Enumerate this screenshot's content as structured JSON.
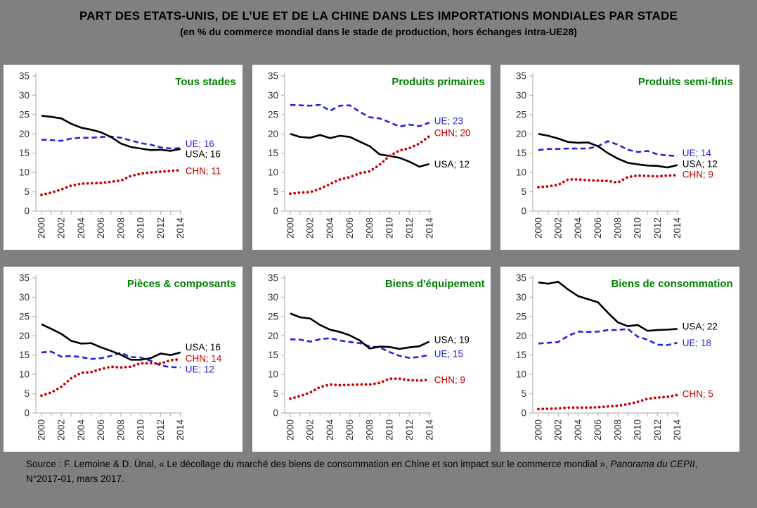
{
  "title": "PART DES ETATS-UNIS, DE L’UE ET DE LA CHINE DANS LES IMPORTATIONS MONDIALES PAR STADE",
  "subtitle": "(en % du commerce mondial dans le stade de production, hors échanges intra-UE28)",
  "source": {
    "prefix": "Source : F. Lemoine & D. Ünal, « Le décollage du marché des biens de consommation en Chine et son impact sur le commerce mondial », ",
    "italic": "Panorama du CEPII",
    "suffix": ", N°2017-01, mars 2017."
  },
  "colors": {
    "background": "#808080",
    "panel_bg": "#FFFFFF",
    "panel_title": "#008000",
    "axis": "#BBBBBB",
    "tick_label": "#333333",
    "usa": "#000000",
    "ue": "#2424DC",
    "chn": "#C90000"
  },
  "chart_common": {
    "type": "line",
    "x": [
      2000,
      2001,
      2002,
      2003,
      2004,
      2005,
      2006,
      2007,
      2008,
      2009,
      2010,
      2011,
      2012,
      2013,
      2014
    ],
    "x_label_step": 2,
    "ylim": [
      0,
      35
    ],
    "y_ticks": [
      0,
      5,
      10,
      15,
      20,
      25,
      30,
      35
    ],
    "grid": false,
    "legend_position": "right-end-labels"
  },
  "chart_data": [
    {
      "title": "Tous stades",
      "series": [
        {
          "name": "UE",
          "color_key": "ue",
          "style": "dashed",
          "end_label": "UE; 16",
          "label_at": 17.4,
          "values": [
            18.5,
            18.4,
            18.2,
            18.8,
            19.0,
            19.0,
            19.2,
            19.3,
            19.0,
            18.3,
            17.6,
            17.2,
            16.5,
            16.2,
            16.3
          ]
        },
        {
          "name": "USA",
          "color_key": "usa",
          "style": "solid",
          "end_label": "USA; 16",
          "label_at": 14.8,
          "values": [
            24.7,
            24.4,
            24.0,
            22.6,
            21.6,
            21.1,
            20.4,
            19.2,
            17.5,
            16.6,
            16.2,
            15.8,
            15.9,
            15.6,
            16.1
          ]
        },
        {
          "name": "CHN",
          "color_key": "chn",
          "style": "dotted",
          "end_label": "CHN; 11",
          "label_at": 10.4,
          "values": [
            4.2,
            4.8,
            5.6,
            6.6,
            7.1,
            7.2,
            7.3,
            7.6,
            7.9,
            9.1,
            9.7,
            10.0,
            10.2,
            10.4,
            10.6
          ]
        }
      ]
    },
    {
      "title": "Produits primaires",
      "series": [
        {
          "name": "UE",
          "color_key": "ue",
          "style": "dashed",
          "end_label": "UE; 23",
          "label_at": 23.3,
          "values": [
            27.5,
            27.4,
            27.3,
            27.5,
            26.0,
            27.3,
            27.4,
            25.7,
            24.3,
            24.0,
            23.0,
            21.9,
            22.4,
            22.0,
            22.9
          ]
        },
        {
          "name": "USA",
          "color_key": "usa",
          "style": "solid",
          "end_label": "USA; 12",
          "label_at": 12.1,
          "values": [
            20.0,
            19.2,
            19.0,
            19.7,
            18.9,
            19.5,
            19.2,
            18.0,
            16.8,
            14.7,
            14.3,
            13.8,
            12.8,
            11.5,
            12.2
          ]
        },
        {
          "name": "CHN",
          "color_key": "chn",
          "style": "dotted",
          "end_label": "CHN; 20",
          "label_at": 20.2,
          "values": [
            4.5,
            4.8,
            4.9,
            5.8,
            7.0,
            8.2,
            8.8,
            9.8,
            10.3,
            12.0,
            14.3,
            15.7,
            16.3,
            17.5,
            19.4
          ]
        }
      ]
    },
    {
      "title": "Produits semi-finis",
      "series": [
        {
          "name": "UE",
          "color_key": "ue",
          "style": "dashed",
          "end_label": "UE; 14",
          "label_at": 15.0,
          "values": [
            15.8,
            16.1,
            16.1,
            16.2,
            16.2,
            16.2,
            16.8,
            18.1,
            17.2,
            15.9,
            15.3,
            15.6,
            14.7,
            14.4,
            14.3
          ]
        },
        {
          "name": "USA",
          "color_key": "usa",
          "style": "solid",
          "end_label": "USA; 12",
          "label_at": 12.2,
          "values": [
            20.0,
            19.5,
            18.8,
            17.9,
            17.7,
            17.8,
            16.8,
            15.0,
            13.6,
            12.5,
            12.1,
            11.8,
            11.7,
            11.3,
            11.9
          ]
        },
        {
          "name": "CHN",
          "color_key": "chn",
          "style": "dotted",
          "end_label": "CHN; 9",
          "label_at": 9.5,
          "values": [
            6.2,
            6.4,
            6.8,
            8.2,
            8.2,
            8.0,
            7.9,
            7.8,
            7.4,
            8.8,
            9.2,
            9.1,
            9.0,
            9.2,
            9.3
          ]
        }
      ]
    },
    {
      "title": "Pièces & composants",
      "series": [
        {
          "name": "UE",
          "color_key": "ue",
          "style": "dashed",
          "end_label": "UE; 12",
          "label_at": 11.3,
          "values": [
            15.7,
            15.9,
            14.6,
            14.8,
            14.5,
            14.0,
            14.2,
            14.8,
            15.6,
            14.5,
            14.4,
            13.5,
            12.3,
            11.9,
            11.8
          ]
        },
        {
          "name": "USA",
          "color_key": "usa",
          "style": "solid",
          "end_label": "USA; 16",
          "label_at": 17.0,
          "values": [
            23.0,
            21.8,
            20.5,
            18.7,
            18.0,
            18.1,
            17.0,
            16.1,
            15.1,
            13.8,
            13.8,
            14.2,
            15.4,
            15.0,
            15.7
          ]
        },
        {
          "name": "CHN",
          "color_key": "chn",
          "style": "dotted",
          "end_label": "CHN; 14",
          "label_at": 14.1,
          "values": [
            4.5,
            5.3,
            6.8,
            9.0,
            10.4,
            10.6,
            11.4,
            12.0,
            11.8,
            12.0,
            12.9,
            12.9,
            12.8,
            13.7,
            13.9
          ]
        }
      ]
    },
    {
      "title": "Biens d'équipement",
      "series": [
        {
          "name": "UE",
          "color_key": "ue",
          "style": "dashed",
          "end_label": "UE; 15",
          "label_at": 15.3,
          "values": [
            19.1,
            19.0,
            18.5,
            19.1,
            19.4,
            18.8,
            18.4,
            18.1,
            17.3,
            17.0,
            15.8,
            14.8,
            14.3,
            14.5,
            15.1
          ]
        },
        {
          "name": "USA",
          "color_key": "usa",
          "style": "solid",
          "end_label": "USA; 19",
          "label_at": 19.0,
          "values": [
            25.8,
            24.8,
            24.5,
            22.8,
            21.6,
            21.0,
            20.1,
            18.8,
            16.7,
            17.2,
            17.1,
            16.6,
            17.0,
            17.3,
            18.5
          ]
        },
        {
          "name": "CHN",
          "color_key": "chn",
          "style": "dotted",
          "end_label": "CHN; 9",
          "label_at": 8.6,
          "values": [
            3.7,
            4.4,
            5.3,
            6.7,
            7.4,
            7.2,
            7.3,
            7.4,
            7.4,
            7.8,
            8.9,
            8.9,
            8.5,
            8.4,
            8.6
          ]
        }
      ]
    },
    {
      "title": "Biens de consommation",
      "series": [
        {
          "name": "UE",
          "color_key": "ue",
          "style": "dashed",
          "end_label": "UE; 18",
          "label_at": 18.1,
          "values": [
            18.0,
            18.2,
            18.4,
            20.0,
            21.1,
            21.0,
            21.1,
            21.5,
            21.5,
            21.8,
            19.8,
            19.0,
            17.7,
            17.6,
            18.2
          ]
        },
        {
          "name": "USA",
          "color_key": "usa",
          "style": "solid",
          "end_label": "USA; 22",
          "label_at": 22.4,
          "values": [
            33.8,
            33.5,
            34.0,
            32.0,
            30.3,
            29.5,
            28.7,
            26.0,
            23.5,
            22.5,
            22.8,
            21.3,
            21.5,
            21.6,
            21.8
          ]
        },
        {
          "name": "CHN",
          "color_key": "chn",
          "style": "dotted",
          "end_label": "CHN; 5",
          "label_at": 4.9,
          "values": [
            1.0,
            1.1,
            1.2,
            1.4,
            1.4,
            1.4,
            1.5,
            1.7,
            1.9,
            2.3,
            2.9,
            3.7,
            4.0,
            4.2,
            4.7
          ]
        }
      ]
    }
  ]
}
